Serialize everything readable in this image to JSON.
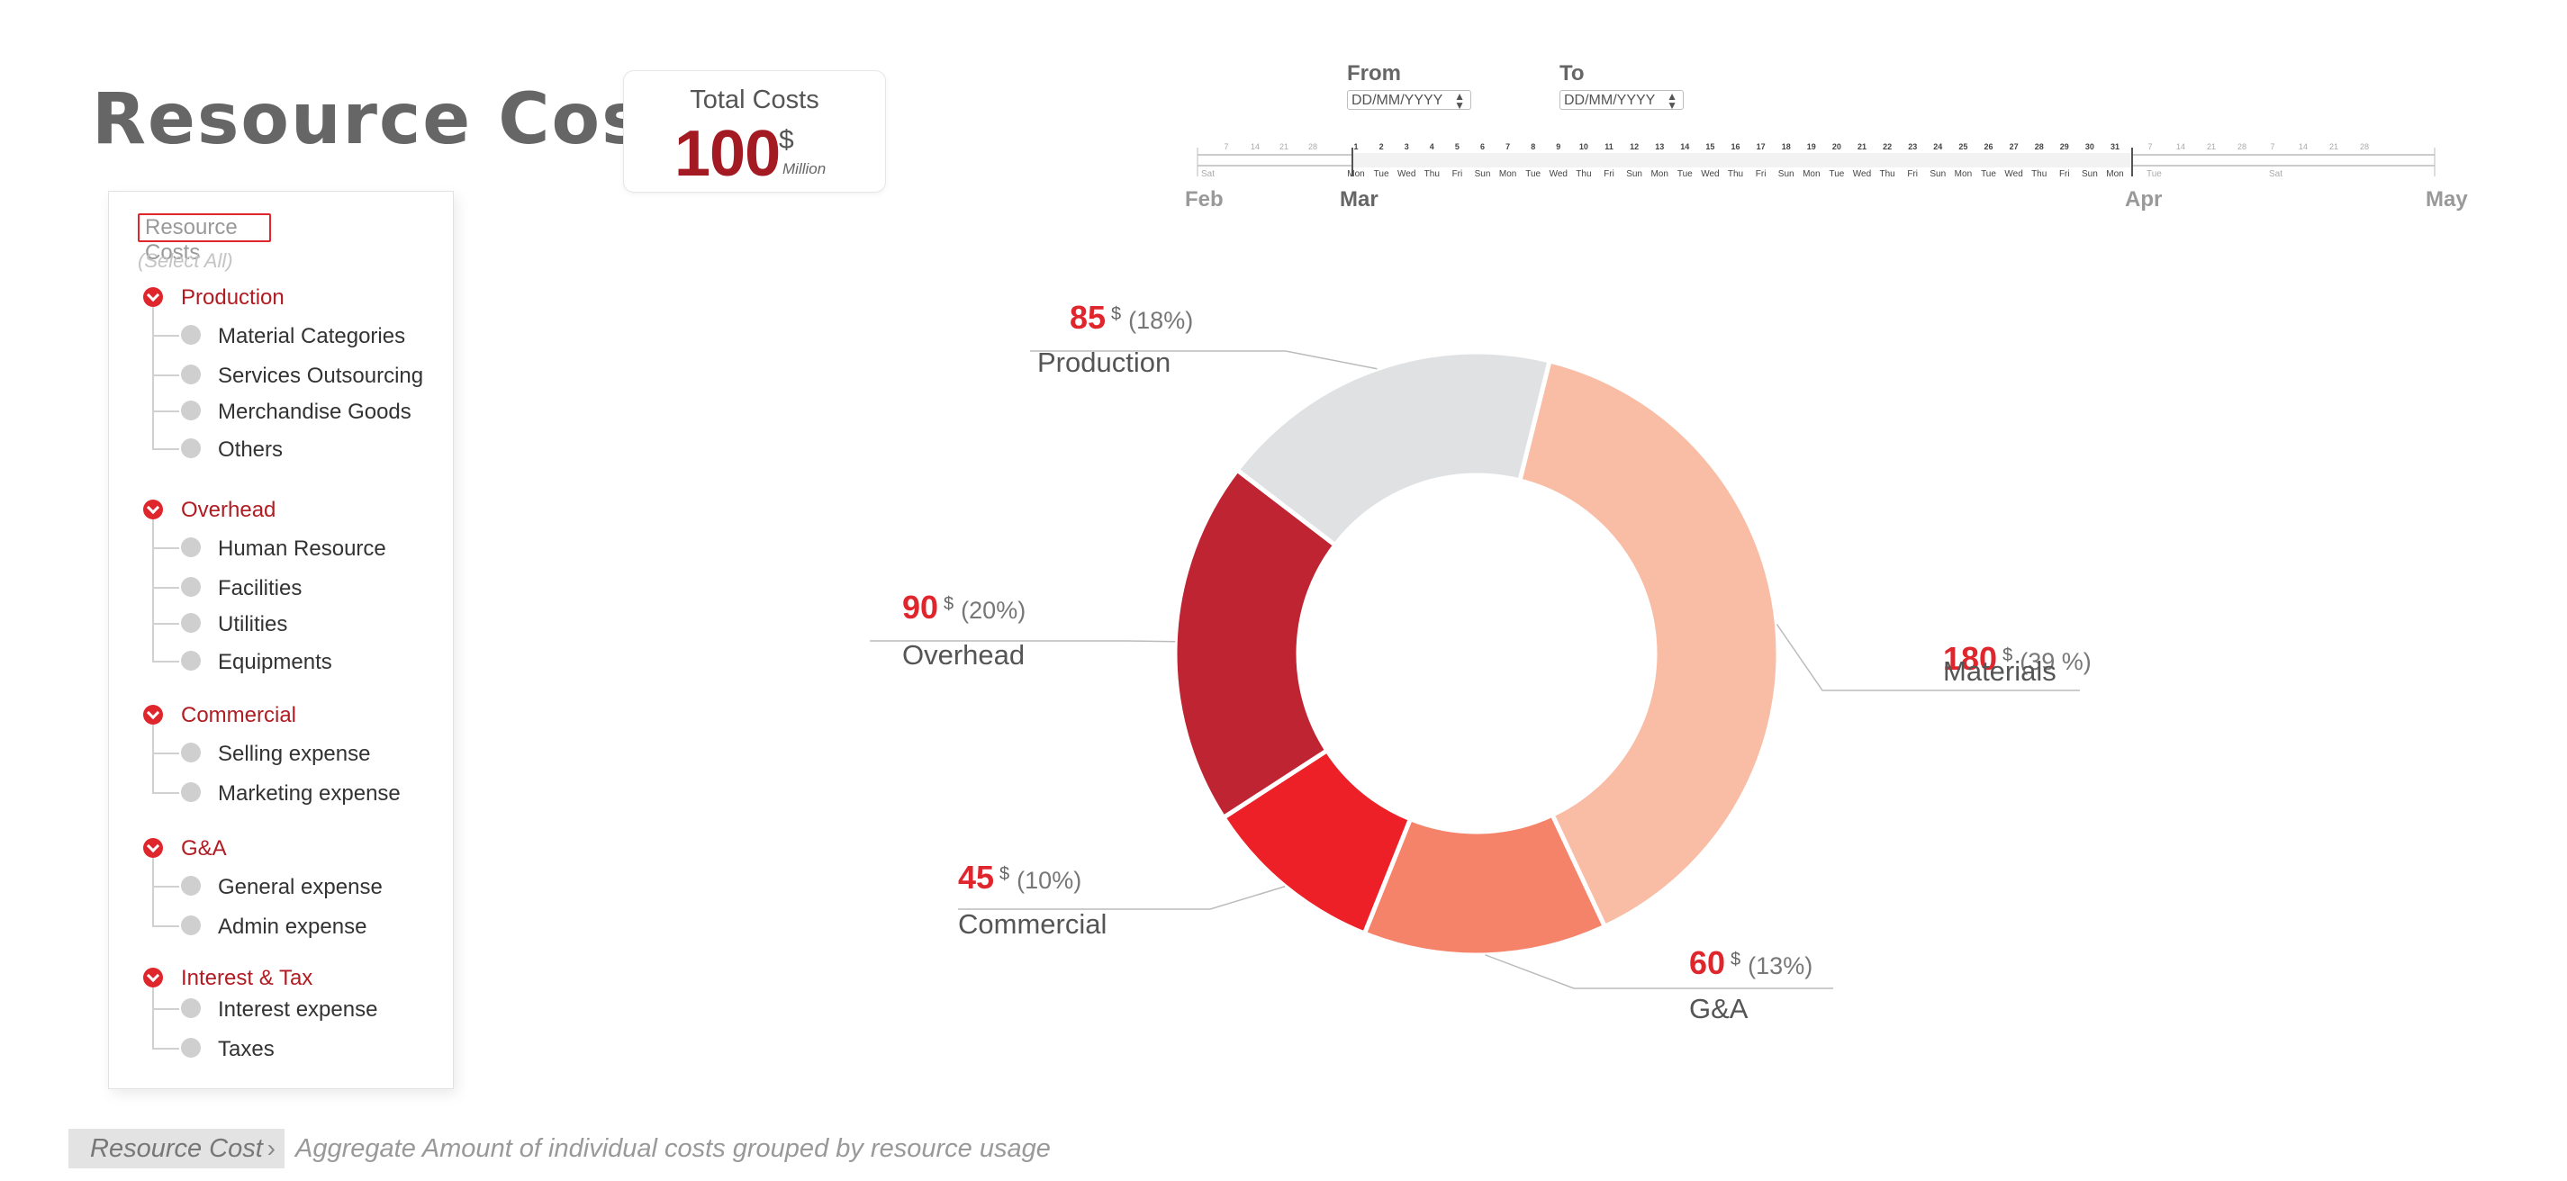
{
  "header": {
    "title": "Resource Cost"
  },
  "total_costs": {
    "label": "Total Costs",
    "value": "100",
    "currency": "$",
    "unit": "Million"
  },
  "filter": {
    "header": "Resource Costs",
    "select_all": "(Select All)",
    "groups": [
      {
        "label": "Production",
        "items": [
          "Material Categories",
          "Services Outsourcing",
          "Merchandise Goods",
          "Others"
        ]
      },
      {
        "label": "Overhead",
        "items": [
          "Human Resource",
          "Facilities",
          "Utilities",
          "Equipments"
        ]
      },
      {
        "label": "Commercial",
        "items": [
          "Selling expense",
          "Marketing expense"
        ]
      },
      {
        "label": "G&A",
        "items": [
          "General expense",
          "Admin expense"
        ]
      },
      {
        "label": "Interest & Tax",
        "items": [
          "Interest expense",
          "Taxes"
        ]
      }
    ]
  },
  "date_range": {
    "from_label": "From",
    "to_label": "To",
    "from_placeholder": "DD/MM/YYYY",
    "to_placeholder": "DD/MM/YYYY",
    "months": [
      "Feb",
      "Mar",
      "Apr",
      "May"
    ],
    "feb_ticks": [
      "7",
      "14",
      "21",
      "28"
    ],
    "feb_day": "Sat",
    "mar_days": [
      "1",
      "2",
      "3",
      "4",
      "5",
      "6",
      "7",
      "8",
      "9",
      "10",
      "11",
      "12",
      "13",
      "14",
      "15",
      "16",
      "17",
      "18",
      "19",
      "20",
      "21",
      "22",
      "23",
      "24",
      "25",
      "26",
      "27",
      "28",
      "29",
      "30",
      "31"
    ],
    "mar_weekdays": [
      "Mon",
      "Tue",
      "Wed",
      "Thu",
      "Fri",
      "Sun",
      "Mon",
      "Tue",
      "Wed",
      "Thu",
      "Fri",
      "Sun",
      "Mon",
      "Tue",
      "Wed",
      "Thu",
      "Fri",
      "Sun",
      "Mon",
      "Tue",
      "Wed",
      "Thu",
      "Fri",
      "Sun",
      "Mon",
      "Tue",
      "Wed",
      "Thu",
      "Fri",
      "Sun",
      "Mon"
    ],
    "apr_ticks": [
      "7",
      "14",
      "21",
      "28",
      "7",
      "14",
      "21",
      "28"
    ],
    "apr_days": [
      "Tue",
      "Sat"
    ]
  },
  "chart_data": {
    "type": "pie",
    "currency": "$",
    "series": [
      {
        "name": "Materials",
        "value": 180,
        "percent": "39 %",
        "color": "#f9bca5"
      },
      {
        "name": "G&A",
        "value": 60,
        "percent": "13%",
        "color": "#f5836a"
      },
      {
        "name": "Commercial",
        "value": 45,
        "percent": "10%",
        "color": "#ed2027"
      },
      {
        "name": "Overhead",
        "value": 90,
        "percent": "20%",
        "color": "#bf2433"
      },
      {
        "name": "Production",
        "value": 85,
        "percent": "18%",
        "color": "#e0e1e2"
      }
    ],
    "value_color": "#e0262d"
  },
  "footer": {
    "breadcrumb": "Resource Cost",
    "description": "Aggregate Amount of individual costs grouped by resource usage"
  },
  "colors": {
    "accent": "#e0262d",
    "title": "#666666"
  }
}
